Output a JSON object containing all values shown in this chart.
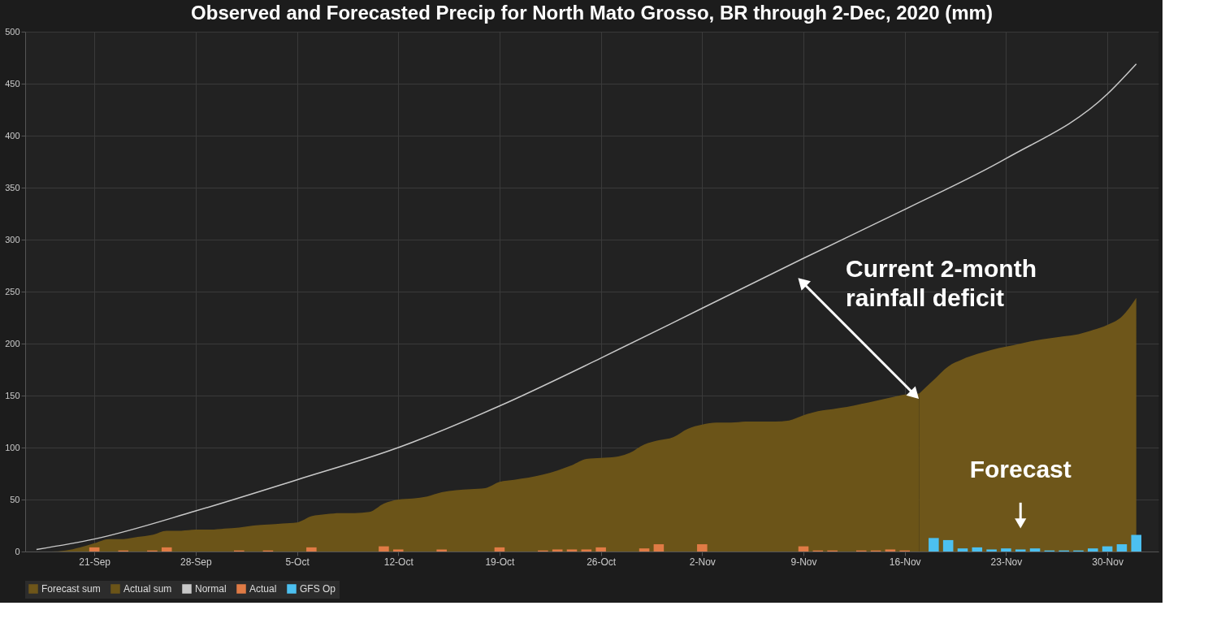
{
  "chart_data": {
    "type": "area",
    "title": "Observed and Forecasted Precip for North Mato Grosso, BR through 2-Dec, 2020 (mm)",
    "xlim": [
      "2020-09-16T12:00",
      "2020-12-03T06:00"
    ],
    "xticks": [
      {
        "value": "2020-09-21",
        "label": "21-Sep"
      },
      {
        "value": "2020-09-28",
        "label": "28-Sep"
      },
      {
        "value": "2020-10-05",
        "label": "5-Oct"
      },
      {
        "value": "2020-10-12",
        "label": "12-Oct"
      },
      {
        "value": "2020-10-19",
        "label": "19-Oct"
      },
      {
        "value": "2020-10-26",
        "label": "26-Oct"
      },
      {
        "value": "2020-11-02",
        "label": "2-Nov"
      },
      {
        "value": "2020-11-09",
        "label": "9-Nov"
      },
      {
        "value": "2020-11-16",
        "label": "16-Nov"
      },
      {
        "value": "2020-11-23",
        "label": "23-Nov"
      },
      {
        "value": "2020-11-30",
        "label": "30-Nov"
      }
    ],
    "ylim": [
      0,
      500
    ],
    "yticks": [
      0,
      50,
      100,
      150,
      200,
      250,
      300,
      350,
      400,
      450,
      500
    ],
    "grid": true,
    "legend": "bottom",
    "series": [
      {
        "name": "Forecast sum",
        "color": "#6e561a",
        "x": [
          "2020-11-17",
          "2020-11-18",
          "2020-11-19",
          "2020-11-20",
          "2020-11-21",
          "2020-11-22",
          "2020-11-23",
          "2020-11-24",
          "2020-11-25",
          "2020-11-26",
          "2020-11-27",
          "2020-11-28",
          "2020-11-29",
          "2020-11-30",
          "2020-12-01",
          "2020-12-02"
        ],
        "values": [
          152,
          165,
          178,
          185,
          190,
          194,
          197,
          200,
          203,
          205,
          207,
          209,
          213,
          218,
          226,
          244
        ]
      },
      {
        "name": "Actual sum",
        "color": "#6b5418",
        "x": [
          "2020-09-17",
          "2020-09-18",
          "2020-09-19",
          "2020-09-20",
          "2020-09-21",
          "2020-09-22",
          "2020-09-23",
          "2020-09-24",
          "2020-09-25",
          "2020-09-26",
          "2020-09-27",
          "2020-09-28",
          "2020-09-29",
          "2020-09-30",
          "2020-10-01",
          "2020-10-02",
          "2020-10-03",
          "2020-10-04",
          "2020-10-05",
          "2020-10-06",
          "2020-10-07",
          "2020-10-08",
          "2020-10-09",
          "2020-10-10",
          "2020-10-11",
          "2020-10-12",
          "2020-10-13",
          "2020-10-14",
          "2020-10-15",
          "2020-10-16",
          "2020-10-17",
          "2020-10-18",
          "2020-10-19",
          "2020-10-20",
          "2020-10-21",
          "2020-10-22",
          "2020-10-23",
          "2020-10-24",
          "2020-10-25",
          "2020-10-26",
          "2020-10-27",
          "2020-10-28",
          "2020-10-29",
          "2020-10-30",
          "2020-10-31",
          "2020-11-01",
          "2020-11-02",
          "2020-11-03",
          "2020-11-04",
          "2020-11-05",
          "2020-11-06",
          "2020-11-07",
          "2020-11-08",
          "2020-11-09",
          "2020-11-10",
          "2020-11-11",
          "2020-11-12",
          "2020-11-13",
          "2020-11-14",
          "2020-11-15",
          "2020-11-16",
          "2020-11-17"
        ],
        "values": [
          0,
          0,
          1,
          4,
          8,
          12,
          12,
          14,
          16,
          20,
          20,
          21,
          21,
          22,
          23,
          25,
          26,
          27,
          28,
          34,
          36,
          37,
          37,
          38,
          46,
          50,
          51,
          53,
          57,
          59,
          60,
          61,
          67,
          69,
          71,
          74,
          78,
          83,
          89,
          90,
          91,
          95,
          103,
          107,
          110,
          118,
          122,
          124,
          124,
          125,
          125,
          125,
          126,
          131,
          135,
          137,
          139,
          142,
          145,
          148,
          151,
          152
        ]
      },
      {
        "name": "Normal",
        "type": "line",
        "color": "#c8c8c8",
        "x": [
          "2020-09-17",
          "2020-09-21",
          "2020-09-28",
          "2020-10-05",
          "2020-10-12",
          "2020-10-19",
          "2020-10-26",
          "2020-11-02",
          "2020-11-09",
          "2020-11-16",
          "2020-11-23",
          "2020-11-30",
          "2020-12-02"
        ],
        "values": [
          2,
          12,
          39,
          69,
          100,
          140,
          186,
          234,
          282,
          329,
          378,
          440,
          469
        ]
      },
      {
        "name": "Actual",
        "type": "bar",
        "color": "#e07b45",
        "x": [
          "2020-09-21",
          "2020-09-23",
          "2020-09-25",
          "2020-09-26",
          "2020-10-01",
          "2020-10-03",
          "2020-10-06",
          "2020-10-11",
          "2020-10-12",
          "2020-10-15",
          "2020-10-19",
          "2020-10-22",
          "2020-10-23",
          "2020-10-24",
          "2020-10-25",
          "2020-10-26",
          "2020-10-29",
          "2020-10-30",
          "2020-11-02",
          "2020-11-09",
          "2020-11-10",
          "2020-11-11",
          "2020-11-13",
          "2020-11-14",
          "2020-11-15",
          "2020-11-16"
        ],
        "values": [
          4,
          1,
          1,
          4,
          1,
          1,
          4,
          5,
          2,
          2,
          4,
          1,
          2,
          2,
          2,
          4,
          3,
          7,
          7,
          5,
          1,
          1,
          1,
          1,
          2,
          1
        ]
      },
      {
        "name": "GFS Op",
        "type": "bar",
        "color": "#4cc0f0",
        "x": [
          "2020-11-18",
          "2020-11-19",
          "2020-11-20",
          "2020-11-21",
          "2020-11-22",
          "2020-11-23",
          "2020-11-24",
          "2020-11-25",
          "2020-11-26",
          "2020-11-27",
          "2020-11-28",
          "2020-11-29",
          "2020-11-30",
          "2020-12-01",
          "2020-12-02"
        ],
        "values": [
          13,
          11,
          3,
          4,
          2,
          3,
          2,
          3,
          1,
          1,
          1,
          3,
          5,
          7,
          16
        ]
      }
    ],
    "annotations": [
      {
        "text": "Current 2-month rainfall deficit",
        "x": "2020-11-09",
        "y": 258
      },
      {
        "text": "Forecast",
        "x": "2020-11-24",
        "y": 27
      }
    ]
  }
}
